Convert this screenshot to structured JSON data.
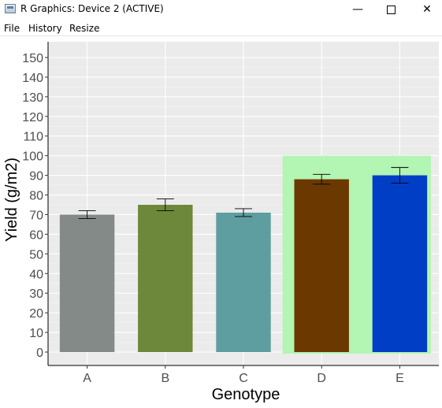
{
  "window": {
    "title": "R Graphics: Device 2 (ACTIVE)",
    "minimize_icon": "minimize-icon",
    "maximize_icon": "maximize-icon",
    "close_icon": "close-icon"
  },
  "menu": {
    "items": [
      "File",
      "History",
      "Resize"
    ]
  },
  "colors": {
    "panel_bg": "#ebebeb",
    "grid_major": "#ffffff",
    "highlight": "#b3f5b3",
    "bars": [
      "#848a87",
      "#6e883b",
      "#5f9ea0",
      "#6b3900",
      "#003ec6"
    ]
  },
  "chart_data": {
    "type": "bar",
    "title": "",
    "xlabel": "Genotype",
    "ylabel": "Yield (g/m2)",
    "categories": [
      "A",
      "B",
      "C",
      "D",
      "E"
    ],
    "values": [
      70,
      75,
      71,
      88,
      90
    ],
    "error_low": [
      68,
      72,
      69,
      85.5,
      86
    ],
    "error_high": [
      72,
      78,
      73,
      90.5,
      94
    ],
    "ylim": [
      0,
      155
    ],
    "yticks": [
      0,
      10,
      20,
      30,
      40,
      50,
      60,
      70,
      80,
      90,
      100,
      110,
      120,
      130,
      140,
      150
    ],
    "grid": true,
    "highlight_region": {
      "from_category": "D",
      "to_category": "E",
      "y_from": 0,
      "y_to": 100
    }
  }
}
